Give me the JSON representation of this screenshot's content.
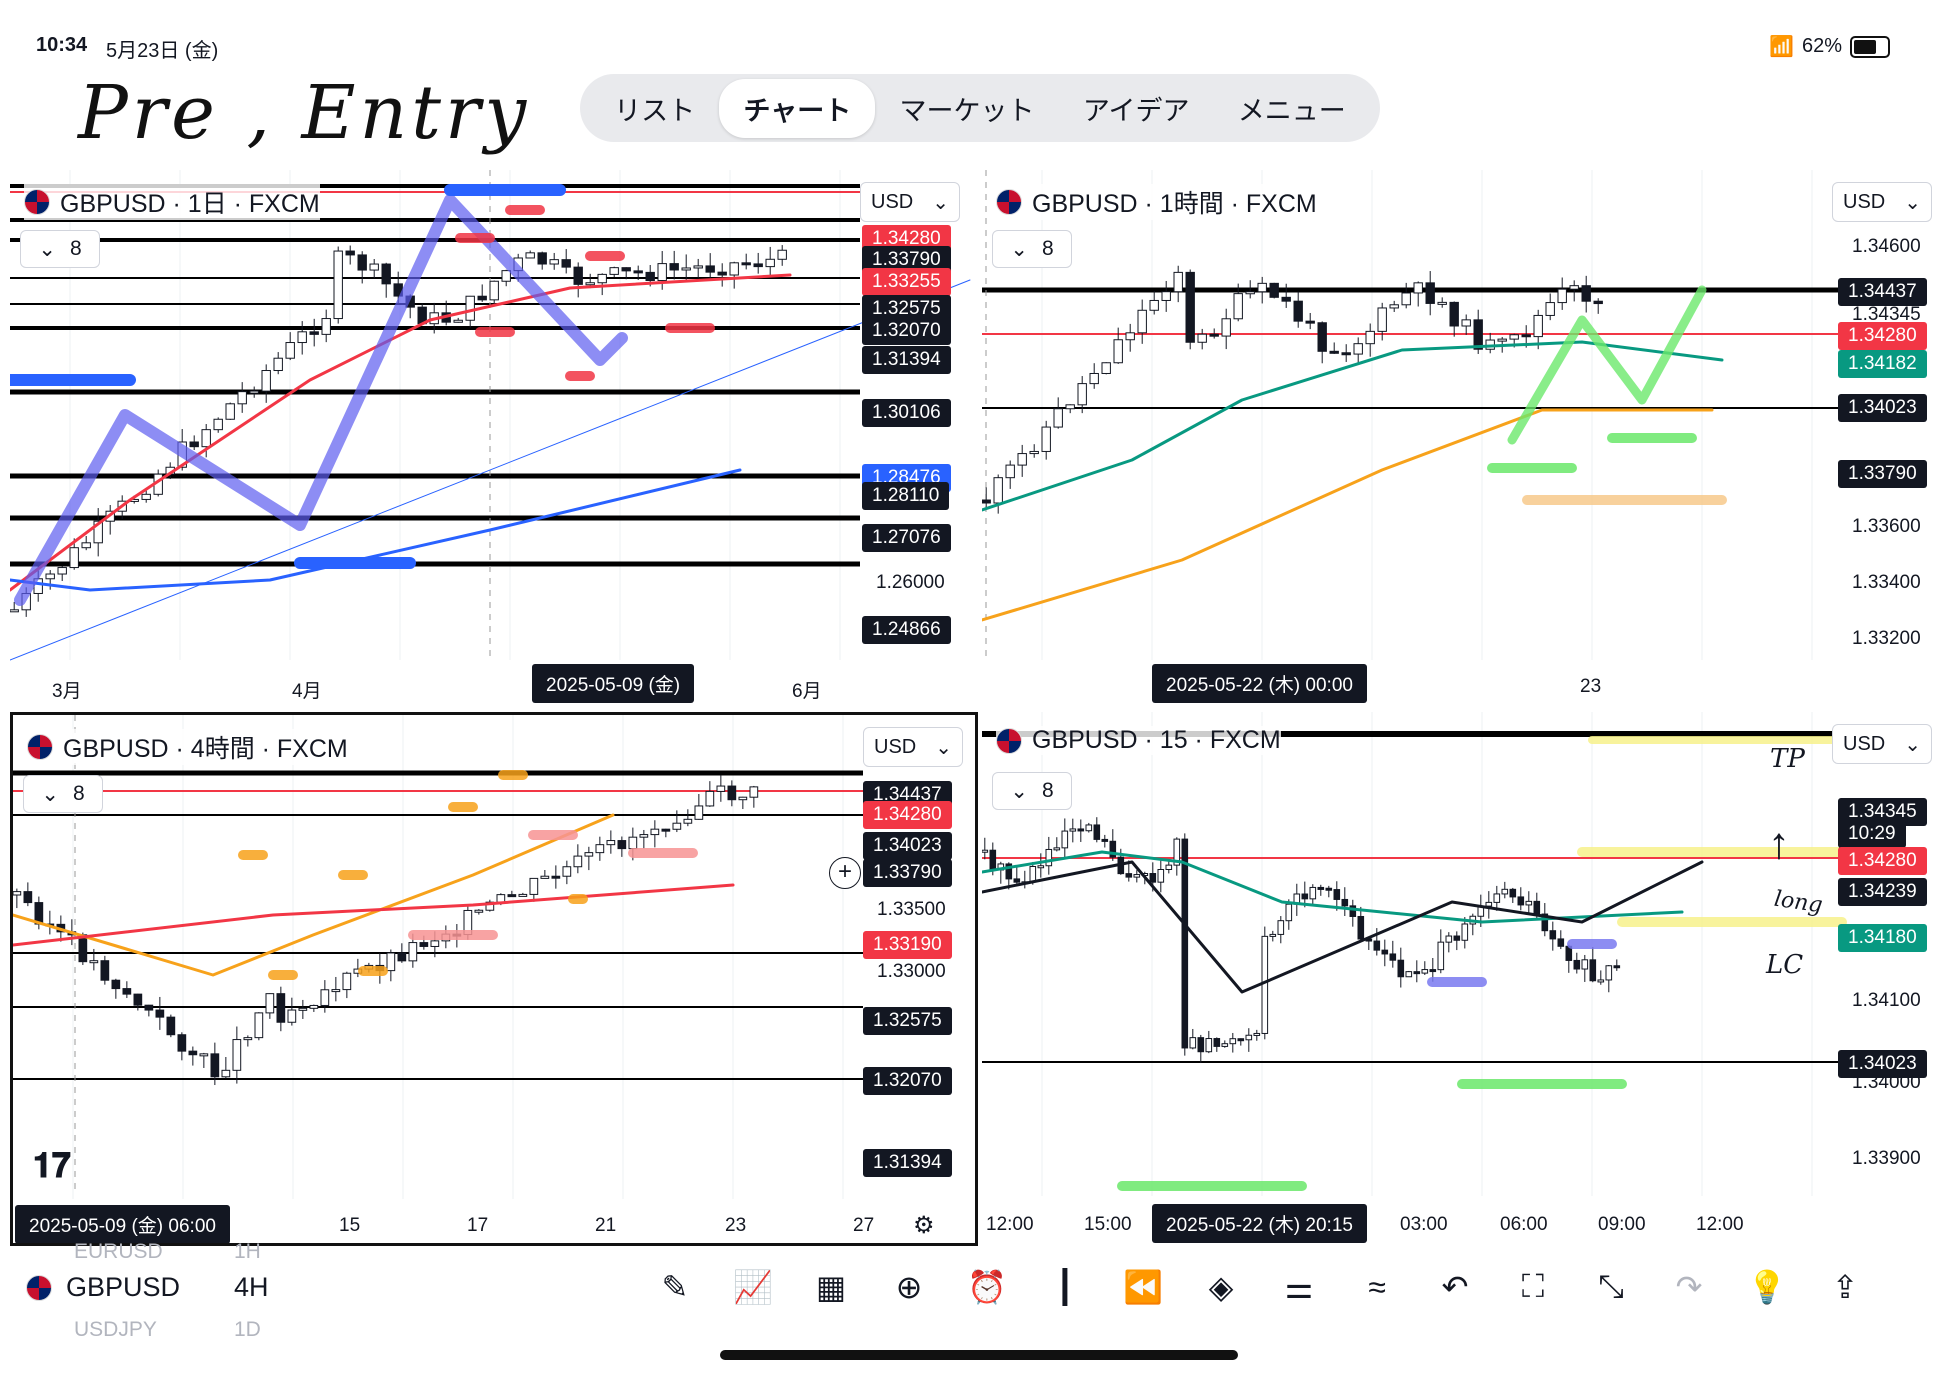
{
  "status": {
    "time": "10:34",
    "date": "5月23日 (金)",
    "battery": "62%"
  },
  "annotation": {
    "title": "Pre , Entry"
  },
  "nav": {
    "tabs": [
      "リスト",
      "チャート",
      "マーケット",
      "アイデア",
      "メニュー"
    ],
    "active": 1
  },
  "panes": [
    {
      "title": "GBPUSD · 1日 · FXCM",
      "currency": "USD",
      "indicators": "8",
      "price_labels": [
        {
          "text": "1.34280",
          "bg": "#f23645"
        },
        {
          "text": "1.33790",
          "bg": "#131722"
        },
        {
          "text": "1.33255",
          "bg": "#f23645"
        },
        {
          "text": "1.32575",
          "bg": "#131722"
        },
        {
          "text": "1.32070",
          "bg": "#131722"
        },
        {
          "text": "1.31394",
          "bg": "#131722"
        },
        {
          "text": "1.30106",
          "bg": "#131722"
        },
        {
          "text": "1.28476",
          "bg": "#2962ff"
        },
        {
          "text": "1.28110",
          "bg": "#131722"
        },
        {
          "text": "1.27076",
          "bg": "#131722"
        },
        {
          "text": "1.26000",
          "bg": ""
        },
        {
          "text": "1.24866",
          "bg": "#131722"
        }
      ],
      "time_labels": [
        "3月",
        "4月",
        "6月"
      ],
      "date_badge": "2025-05-09 (金)"
    },
    {
      "title": "GBPUSD · 1時間 · FXCM",
      "currency": "USD",
      "indicators": "8",
      "price_labels": [
        {
          "text": "1.34600",
          "bg": ""
        },
        {
          "text": "1.34437",
          "bg": "#131722"
        },
        {
          "text": "1.34345",
          "bg": ""
        },
        {
          "text": "1.34280",
          "bg": "#f23645"
        },
        {
          "text": "1.34182",
          "bg": "#089981"
        },
        {
          "text": "1.34023",
          "bg": "#131722"
        },
        {
          "text": "1.33790",
          "bg": "#131722"
        },
        {
          "text": "1.33600",
          "bg": ""
        },
        {
          "text": "1.33400",
          "bg": ""
        },
        {
          "text": "1.33200",
          "bg": ""
        }
      ],
      "time_labels": [
        "23"
      ],
      "date_badge": "2025-05-22 (木)   00:00"
    },
    {
      "title": "GBPUSD · 4時間 · FXCM",
      "currency": "USD",
      "indicators": "8",
      "price_labels": [
        {
          "text": "1.34437",
          "bg": "#131722"
        },
        {
          "text": "1.34280",
          "bg": "#f23645"
        },
        {
          "text": "1.34023",
          "bg": "#131722"
        },
        {
          "text": "1.33790",
          "bg": "#131722"
        },
        {
          "text": "1.33500",
          "bg": ""
        },
        {
          "text": "1.33190",
          "bg": "#f23645"
        },
        {
          "text": "1.33000",
          "bg": ""
        },
        {
          "text": "1.32575",
          "bg": "#131722"
        },
        {
          "text": "1.32070",
          "bg": "#131722"
        },
        {
          "text": "1.31394",
          "bg": "#131722"
        }
      ],
      "time_labels": [
        "15",
        "17",
        "21",
        "23",
        "27"
      ],
      "date_badge": "2025-05-09 (金)   06:00"
    },
    {
      "title": "GBPUSD · 15 · FXCM",
      "currency": "USD",
      "indicators": "8",
      "price_labels": [
        {
          "text": "1.34345",
          "bg": "#131722"
        },
        {
          "text": "10:29",
          "bg": "#131722"
        },
        {
          "text": "1.34280",
          "bg": "#f23645"
        },
        {
          "text": "1.34239",
          "bg": "#131722"
        },
        {
          "text": "1.34180",
          "bg": "#089981"
        },
        {
          "text": "1.34100",
          "bg": ""
        },
        {
          "text": "1.34023",
          "bg": "#131722"
        },
        {
          "text": "1.34000",
          "bg": ""
        },
        {
          "text": "1.33900",
          "bg": ""
        }
      ],
      "time_labels": [
        "12:00",
        "15:00",
        "03:00",
        "06:00",
        "09:00",
        "12:00"
      ],
      "date_badge": "2025-05-22 (木)   20:15",
      "notes": [
        "TP",
        "long",
        "LC"
      ]
    }
  ],
  "bottom": {
    "symbol": "GBPUSD",
    "timeframe": "4H",
    "ghost_above": "EURUSD",
    "ghost_above_tf": "1H",
    "ghost_below": "USDJPY",
    "ghost_below_tf": "1D",
    "tools": [
      "pen-icon",
      "indicators-icon",
      "layout-icon",
      "add-icon",
      "alert-icon",
      "bar-style-icon",
      "replay-icon",
      "layers-icon",
      "settings-icon",
      "drawing-icon",
      "undo-icon",
      "fullscreen-icon",
      "expand-icon",
      "redo-icon",
      "bulb-icon",
      "share-icon"
    ]
  },
  "colors": {
    "red": "#f23645",
    "blue": "#2962ff",
    "green": "#089981",
    "orange": "#f7a21b"
  }
}
